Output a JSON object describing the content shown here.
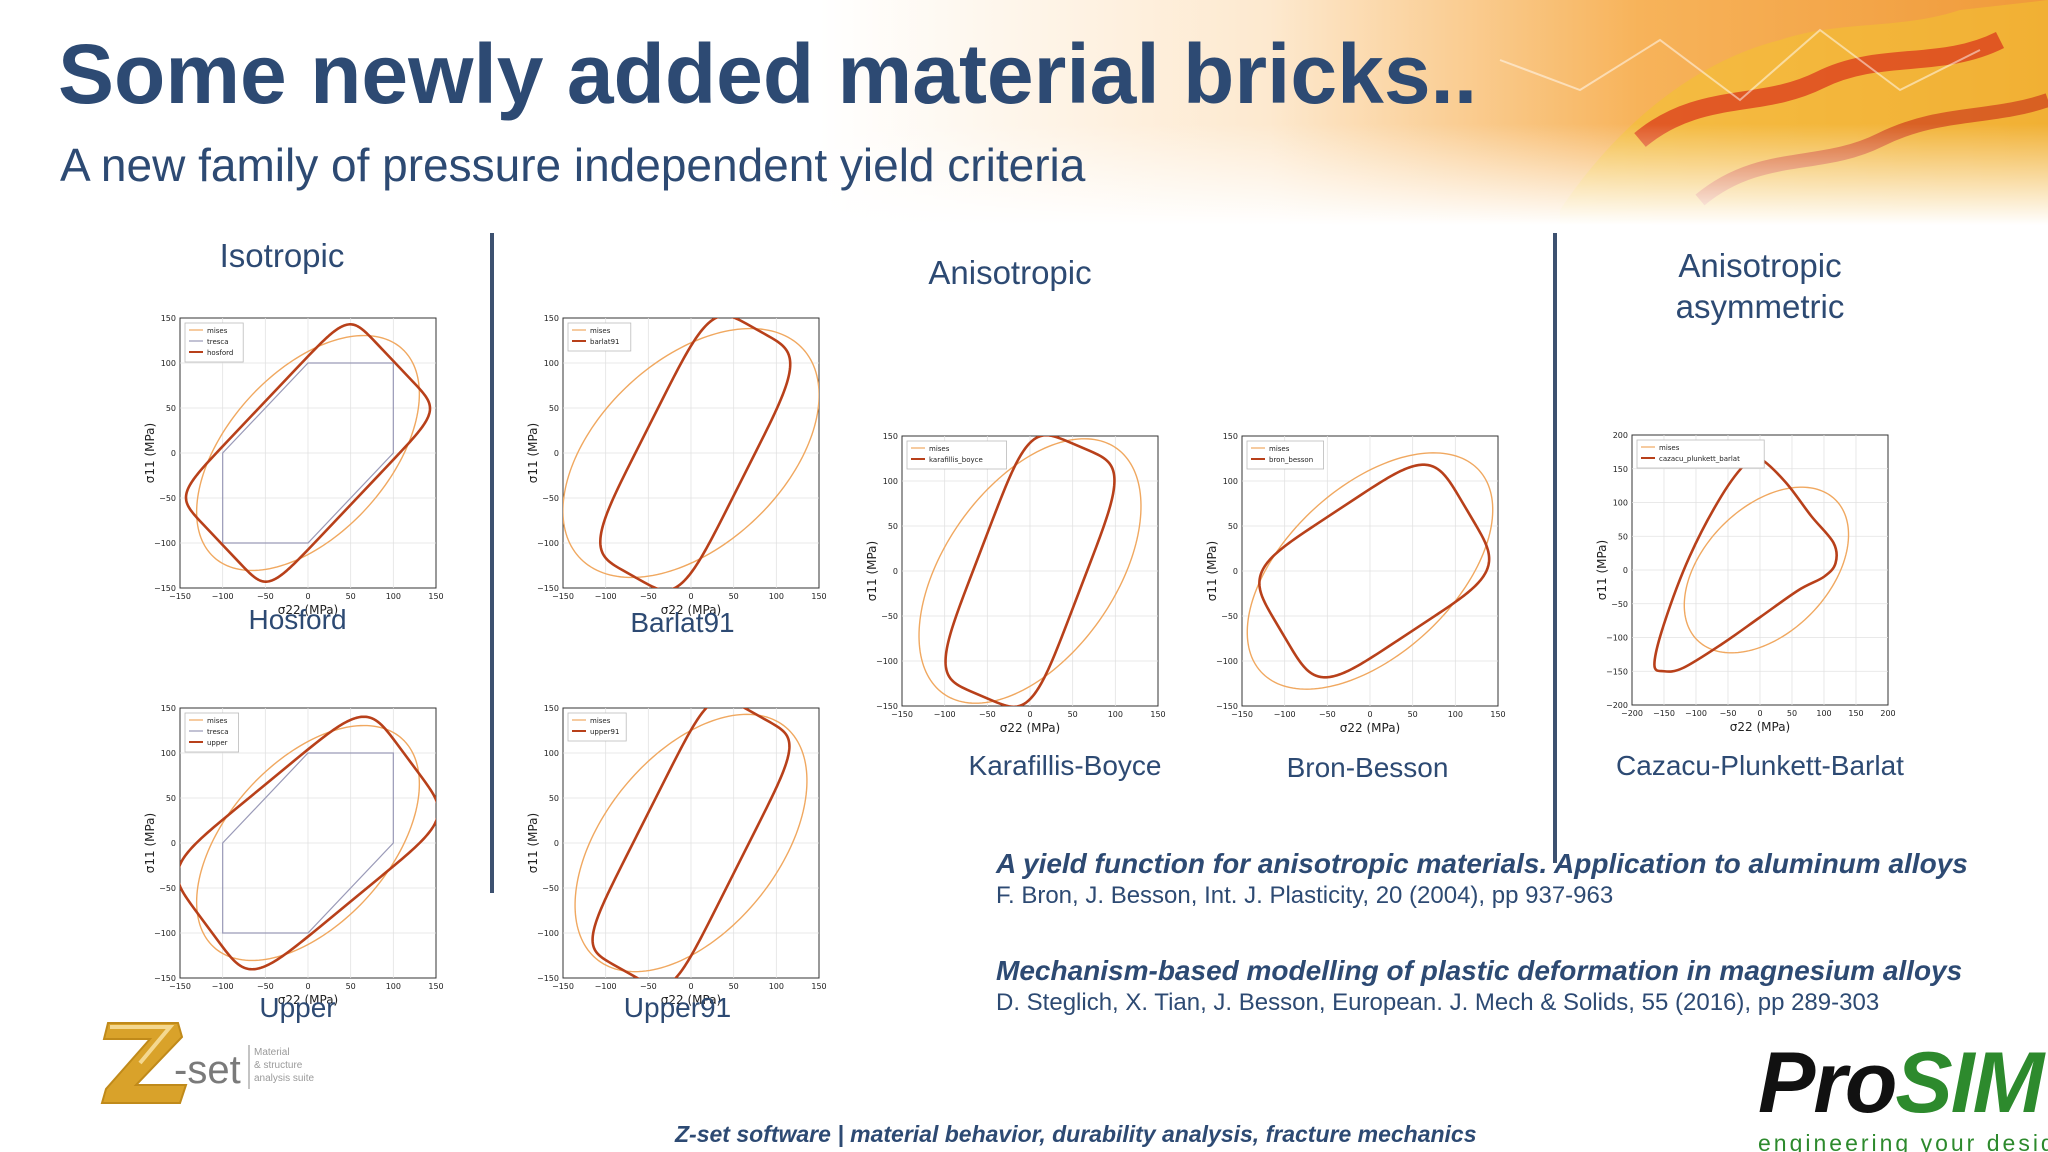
{
  "slide": {
    "title": "Some newly added material bricks..",
    "subtitle": "A new family of pressure independent yield criteria"
  },
  "sections": {
    "isotropic": "Isotropic",
    "anisotropic": "Anisotropic",
    "anisotropic_asymmetric_line1": "Anisotropic",
    "anisotropic_asymmetric_line2": "asymmetric"
  },
  "axes": {
    "xlabel": "σ22 (MPa)",
    "ylabel": "σ11 (MPa)"
  },
  "plots": [
    {
      "caption": "Hosford",
      "legend": [
        "mises",
        "tresca",
        "hosford"
      ],
      "xticks": [
        "−150",
        "−100",
        "−50",
        "0",
        "50",
        "100",
        "150"
      ],
      "yticks": [
        "150",
        "100",
        "50",
        "0",
        "−50",
        "−100",
        "−150"
      ],
      "range": 150
    },
    {
      "caption": "Barlat91",
      "legend": [
        "mises",
        "barlat91"
      ],
      "xticks": [
        "−150",
        "−100",
        "−50",
        "0",
        "50",
        "100",
        "150"
      ],
      "yticks": [
        "150",
        "100",
        "50",
        "0",
        "−50",
        "−100",
        "−150"
      ],
      "range": 150
    },
    {
      "caption": "Upper",
      "legend": [
        "mises",
        "tresca",
        "upper"
      ],
      "xticks": [
        "−150",
        "−100",
        "−50",
        "0",
        "50",
        "100",
        "150"
      ],
      "yticks": [
        "150",
        "100",
        "50",
        "0",
        "−50",
        "−100",
        "−150"
      ],
      "range": 150
    },
    {
      "caption": "Upper91",
      "legend": [
        "mises",
        "upper91"
      ],
      "xticks": [
        "−150",
        "−100",
        "−50",
        "0",
        "50",
        "100",
        "150"
      ],
      "yticks": [
        "150",
        "100",
        "50",
        "0",
        "−50",
        "−100",
        "−150"
      ],
      "range": 150
    },
    {
      "caption": "Karafillis-Boyce",
      "legend": [
        "mises",
        "karafillis_boyce"
      ],
      "xticks": [
        "−150",
        "−100",
        "−50",
        "0",
        "50",
        "100",
        "150"
      ],
      "yticks": [
        "150",
        "100",
        "50",
        "0",
        "−50",
        "−100",
        "−150"
      ],
      "range": 150
    },
    {
      "caption": "Bron-Besson",
      "legend": [
        "mises",
        "bron_besson"
      ],
      "xticks": [
        "−150",
        "−100",
        "−50",
        "0",
        "50",
        "100",
        "150"
      ],
      "yticks": [
        "150",
        "100",
        "50",
        "0",
        "−50",
        "−100",
        "−150"
      ],
      "range": 150
    },
    {
      "caption": "Cazacu-Plunkett-Barlat",
      "legend": [
        "mises",
        "cazacu_plunkett_barlat"
      ],
      "xticks": [
        "−200",
        "−150",
        "−100",
        "−50",
        "0",
        "50",
        "100",
        "150",
        "200"
      ],
      "yticks": [
        "200",
        "150",
        "100",
        "50",
        "0",
        "−50",
        "−100",
        "−150",
        "−200"
      ],
      "range": 200
    }
  ],
  "references": [
    {
      "title": "A yield function for anisotropic materials. Application to aluminum alloys",
      "authors": "F. Bron, J. Besson, Int. J. Plasticity, 20 (2004), pp 937-963"
    },
    {
      "title": "Mechanism-based modelling of plastic deformation in magnesium alloys",
      "authors": "D. Steglich, X. Tian, J. Besson, European. J. Mech & Solids, 55 (2016), pp 289-303"
    }
  ],
  "footer": "Z-set software  |  material behavior, durability analysis, fracture mechanics",
  "zset_logo": {
    "text": "-set",
    "tagline_1": "Material",
    "tagline_2": "& structure",
    "tagline_3": "analysis suite"
  },
  "prosim_logo": {
    "pro": "Pro",
    "sim": "SIM",
    "tagline": "engineering your designs"
  },
  "colors": {
    "title": "#2d4a73",
    "mises": "#f0a860",
    "tresca": "#9a9ab8",
    "criterion": "#b8401a",
    "prosim_pro": "#111111",
    "prosim_sim": "#2d8a2d"
  }
}
